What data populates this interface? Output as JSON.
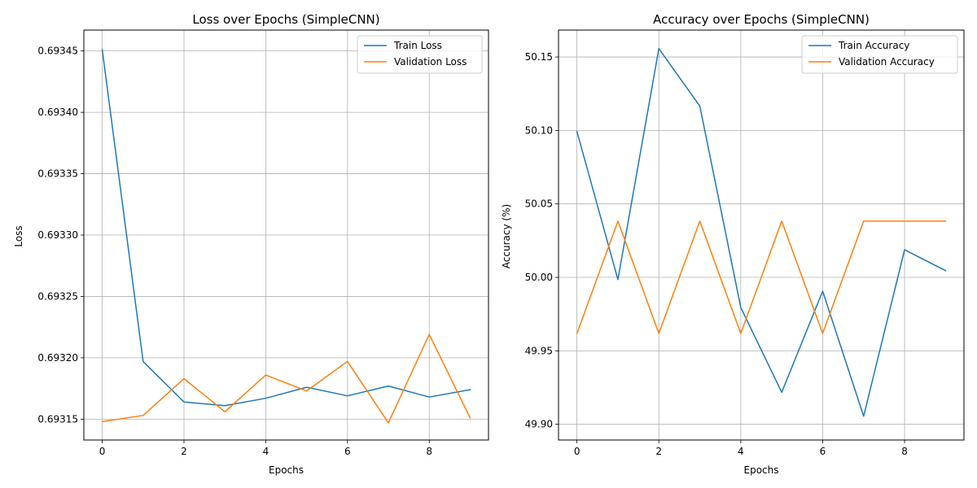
{
  "chart_data": [
    {
      "type": "line",
      "title": "Loss over Epochs (SimpleCNN)",
      "xlabel": "Epochs",
      "ylabel": "Loss",
      "x": [
        0,
        1,
        2,
        3,
        4,
        5,
        6,
        7,
        8,
        9
      ],
      "xlim": [
        -0.45,
        9.45
      ],
      "ylim": [
        0.693133,
        0.693467
      ],
      "xticks": [
        0,
        2,
        4,
        6,
        8
      ],
      "xtick_labels": [
        "0",
        "2",
        "4",
        "6",
        "8"
      ],
      "yticks": [
        0.69315,
        0.6932,
        0.69325,
        0.6933,
        0.69335,
        0.6934,
        0.69345
      ],
      "ytick_labels": [
        "0.69315",
        "0.69320",
        "0.69325",
        "0.69330",
        "0.69335",
        "0.69340",
        "0.69345"
      ],
      "grid": true,
      "legend_position": "top-right",
      "series": [
        {
          "name": "Train Loss",
          "color": "#1f77b4",
          "values": [
            0.693451,
            0.693197,
            0.693164,
            0.693161,
            0.693167,
            0.693176,
            0.693169,
            0.693177,
            0.693168,
            0.693174
          ]
        },
        {
          "name": "Validation Loss",
          "color": "#ff7f0e",
          "values": [
            0.693148,
            0.693153,
            0.693183,
            0.693156,
            0.693186,
            0.693173,
            0.693197,
            0.693147,
            0.693219,
            0.693151
          ]
        }
      ]
    },
    {
      "type": "line",
      "title": "Accuracy over Epochs (SimpleCNN)",
      "xlabel": "Epochs",
      "ylabel": "Accuracy (%)",
      "x": [
        0,
        1,
        2,
        3,
        4,
        5,
        6,
        7,
        8,
        9
      ],
      "xlim": [
        -0.45,
        9.45
      ],
      "ylim": [
        49.8893,
        50.1683
      ],
      "xticks": [
        0,
        2,
        4,
        6,
        8
      ],
      "xtick_labels": [
        "0",
        "2",
        "4",
        "6",
        "8"
      ],
      "yticks": [
        49.9,
        49.95,
        50.0,
        50.05,
        50.1,
        50.15
      ],
      "ytick_labels": [
        "49.90",
        "49.95",
        "50.00",
        "50.05",
        "50.10",
        "50.15"
      ],
      "grid": true,
      "legend_position": "top-right",
      "series": [
        {
          "name": "Train Accuracy",
          "color": "#1f77b4",
          "values": [
            50.0993,
            49.9985,
            50.1557,
            50.1166,
            49.9795,
            49.9218,
            49.9906,
            49.9055,
            50.0188,
            50.0046
          ]
        },
        {
          "name": "Validation Accuracy",
          "color": "#ff7f0e",
          "values": [
            49.9618,
            50.0383,
            49.9618,
            50.0383,
            49.9618,
            50.0383,
            49.9618,
            50.0383,
            50.0383,
            50.0383
          ]
        }
      ]
    }
  ]
}
